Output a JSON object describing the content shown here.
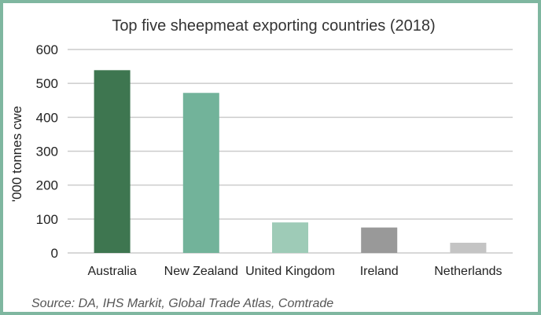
{
  "chart_data": {
    "type": "bar",
    "title": "Top five sheepmeat exporting countries (2018)",
    "ylabel": "'000 tonnes cwe",
    "xlabel": "",
    "categories": [
      "Australia",
      "New Zealand",
      "United Kingdom",
      "Ireland",
      "Netherlands"
    ],
    "values": [
      539,
      472,
      90,
      75,
      30
    ],
    "colors": [
      "#3e7650",
      "#72b39a",
      "#9ecbb7",
      "#999999",
      "#c4c4c4"
    ],
    "ylim": [
      0,
      600
    ],
    "yticks": [
      0,
      100,
      200,
      300,
      400,
      500,
      600
    ],
    "grid": true,
    "gridColor": "#cccccc",
    "legend": "none"
  },
  "source": "Source: DA, IHS Markit, Global Trade Atlas, Comtrade"
}
